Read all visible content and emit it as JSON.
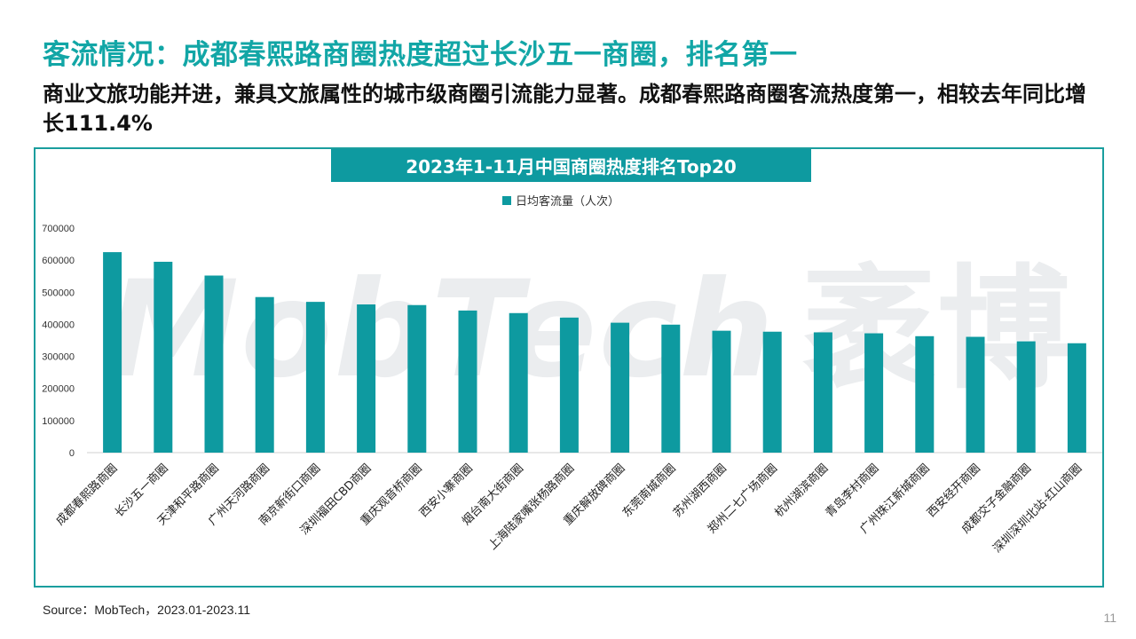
{
  "headline": "客流情况：成都春熙路商圈热度超过长沙五一商圈，排名第一",
  "subhead": "商业文旅功能并进，兼具文旅属性的城市级商圈引流能力显著。成都春熙路商圈客流热度第一，相较去年同比增长111.4%",
  "watermark": {
    "latin": "MobTech",
    "zh": "袤博"
  },
  "colors": {
    "accent": "#0E9AA0",
    "headline": "#12A6A6",
    "frame": "#1A9E9E",
    "text": "#222222"
  },
  "source": "Source：MobTech，2023.01-2023.11",
  "page_number": "11",
  "chart_data": {
    "type": "bar",
    "title": "2023年1-11月中国商圈热度排名Top20",
    "legend_position": "top-center",
    "grid": false,
    "ylim": [
      0,
      700000
    ],
    "yticks": [
      0,
      100000,
      200000,
      300000,
      400000,
      500000,
      600000,
      700000
    ],
    "categories": [
      "成都春熙路商圈",
      "长沙五一商圈",
      "天津和平路商圈",
      "广州天河路商圈",
      "南京新街口商圈",
      "深圳福田CBD商圈",
      "重庆观音桥商圈",
      "西安小寨商圈",
      "烟台南大街商圈",
      "上海陆家嘴张杨路商圈",
      "重庆解放碑商圈",
      "东莞南城商圈",
      "苏州湖西商圈",
      "郑州二七广场商圈",
      "杭州湖滨商圈",
      "青岛李村商圈",
      "广州珠江新城商圈",
      "西安经开商圈",
      "成都交子金融商圈",
      "深圳深圳北站-红山商圈"
    ],
    "series": [
      {
        "name": "日均客流量（人次）",
        "values": [
          625000,
          595000,
          552000,
          485000,
          470000,
          462000,
          460000,
          443000,
          435000,
          421000,
          405000,
          399000,
          380000,
          377000,
          375000,
          372000,
          363000,
          361000,
          347000,
          341000
        ]
      }
    ]
  }
}
